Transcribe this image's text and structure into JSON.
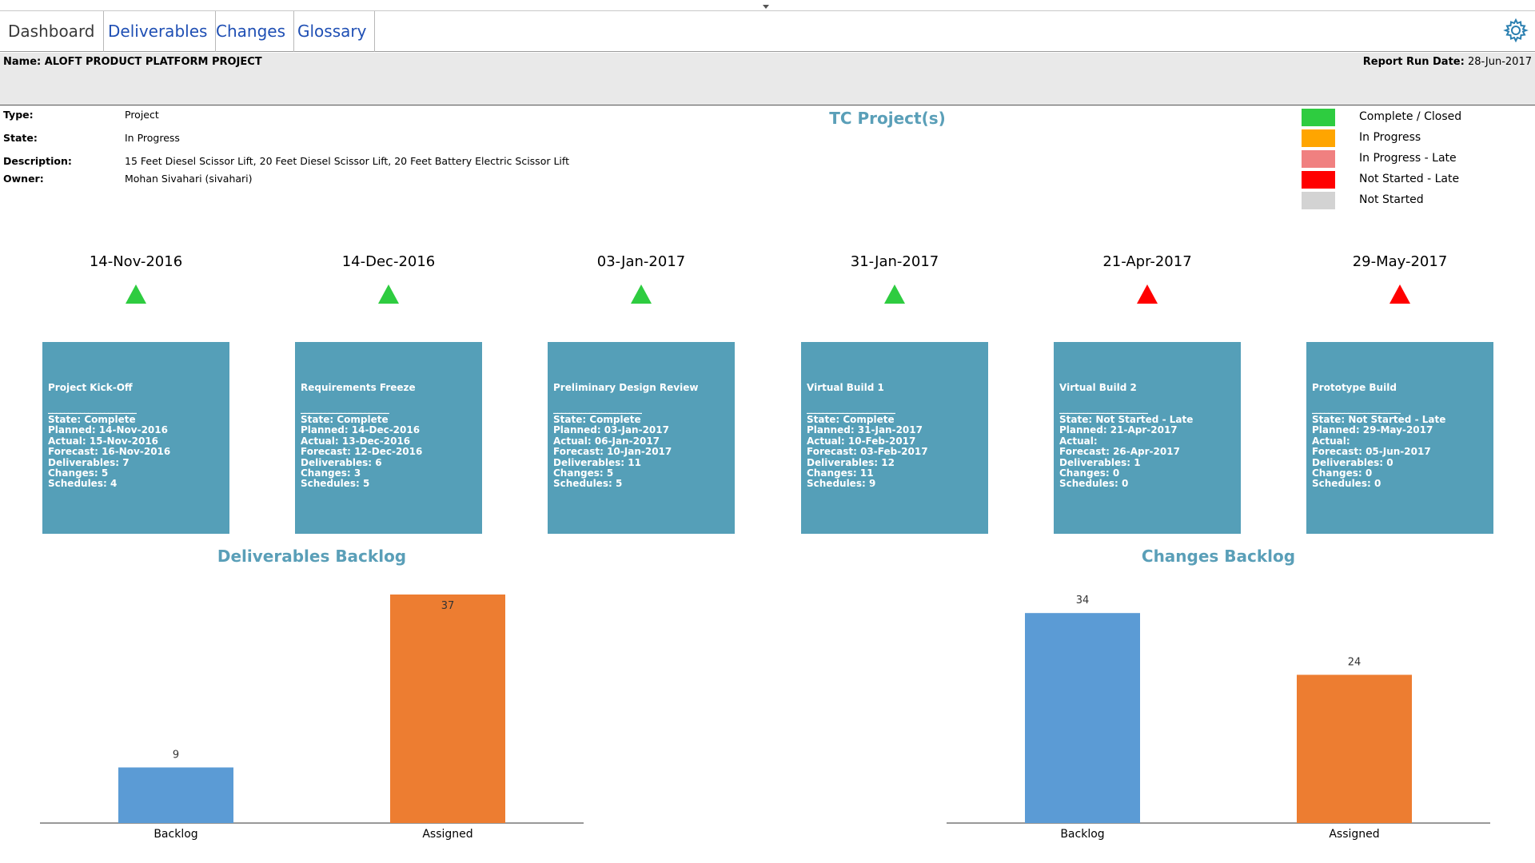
{
  "tabs": [
    {
      "label": "Dashboard",
      "active": true
    },
    {
      "label": "Deliverables",
      "active": false
    },
    {
      "label": "Changes",
      "active": false
    },
    {
      "label": "Glossary",
      "active": false
    }
  ],
  "header": {
    "name_label": "Name:",
    "name_value": "ALOFT PRODUCT PLATFORM PROJECT",
    "run_date_label": "Report Run Date:",
    "run_date_value": "28-Jun-2017"
  },
  "meta": {
    "type_label": "Type:",
    "type_value": "Project",
    "state_label": "State:",
    "state_value": "In Progress",
    "description_label": "Description:",
    "description_value": "15 Feet Diesel Scissor Lift, 20 Feet Diesel Scissor Lift, 20 Feet Battery Electric Scissor Lift",
    "owner_label": "Owner:",
    "owner_value": "Mohan Sivahari (sivahari)"
  },
  "tc_title": "TC Project(s)",
  "legend": [
    {
      "label": "Complete / Closed",
      "color": "#2ecc40"
    },
    {
      "label": "In Progress",
      "color": "#ffa500"
    },
    {
      "label": "In Progress - Late",
      "color": "#f08080"
    },
    {
      "label": "Not Started - Late",
      "color": "#ff0000"
    },
    {
      "label": "Not Started",
      "color": "#d3d3d3"
    }
  ],
  "milestones": [
    {
      "date": "14-Nov-2016",
      "status": "on-time",
      "name": "Project Kick-Off",
      "separator": "______________________",
      "lines": [
        "State: Complete",
        "Planned: 14-Nov-2016",
        "Actual: 15-Nov-2016",
        "Forecast: 16-Nov-2016",
        "Deliverables: 7",
        "Changes: 5",
        "Schedules: 4"
      ]
    },
    {
      "date": "14-Dec-2016",
      "status": "on-time",
      "name": "Requirements Freeze",
      "separator": "______________________",
      "lines": [
        "State: Complete",
        "Planned: 14-Dec-2016",
        "Actual: 13-Dec-2016",
        "Forecast: 12-Dec-2016",
        "Deliverables: 6",
        "Changes: 3",
        "Schedules: 5"
      ]
    },
    {
      "date": "03-Jan-2017",
      "status": "on-time",
      "name": "Preliminary Design Review",
      "separator": "______________________",
      "lines": [
        "State: Complete",
        "Planned: 03-Jan-2017",
        "Actual: 06-Jan-2017",
        "Forecast: 10-Jan-2017",
        "Deliverables: 11",
        "Changes: 5",
        "Schedules: 5"
      ]
    },
    {
      "date": "31-Jan-2017",
      "status": "on-time",
      "name": "Virtual Build 1",
      "separator": "______________________",
      "lines": [
        "State: Complete",
        "Planned: 31-Jan-2017",
        "Actual: 10-Feb-2017",
        "Forecast: 03-Feb-2017",
        "Deliverables: 12",
        "Changes: 11",
        "Schedules: 9"
      ]
    },
    {
      "date": "21-Apr-2017",
      "status": "late",
      "name": "Virtual Build 2",
      "separator": "______________________",
      "lines": [
        "State: Not Started - Late",
        "Planned: 21-Apr-2017",
        "Actual:",
        "Forecast: 26-Apr-2017",
        "Deliverables: 1",
        "Changes: 0",
        "Schedules: 0"
      ]
    },
    {
      "date": "29-May-2017",
      "status": "late",
      "name": "Prototype Build",
      "separator": "______________________",
      "lines": [
        "State: Not Started - Late",
        "Planned: 29-May-2017",
        "Actual:",
        "Forecast: 05-Jun-2017",
        "Deliverables: 0",
        "Changes: 0",
        "Schedules: 0"
      ]
    }
  ],
  "chart_data": [
    {
      "type": "bar",
      "title": "Deliverables Backlog",
      "categories": [
        "Backlog",
        "Assigned"
      ],
      "values": [
        9,
        37
      ],
      "colors": [
        "#5b9bd5",
        "#ed7d31"
      ],
      "ylim": [
        0,
        37
      ]
    },
    {
      "type": "bar",
      "title": "Changes Backlog",
      "categories": [
        "Backlog",
        "Assigned"
      ],
      "values": [
        34,
        24
      ],
      "colors": [
        "#5b9bd5",
        "#ed7d31"
      ],
      "ylim": [
        0,
        37
      ]
    }
  ],
  "icons": {
    "settings": "gear-icon",
    "collapse": "chevron-down-icon"
  }
}
